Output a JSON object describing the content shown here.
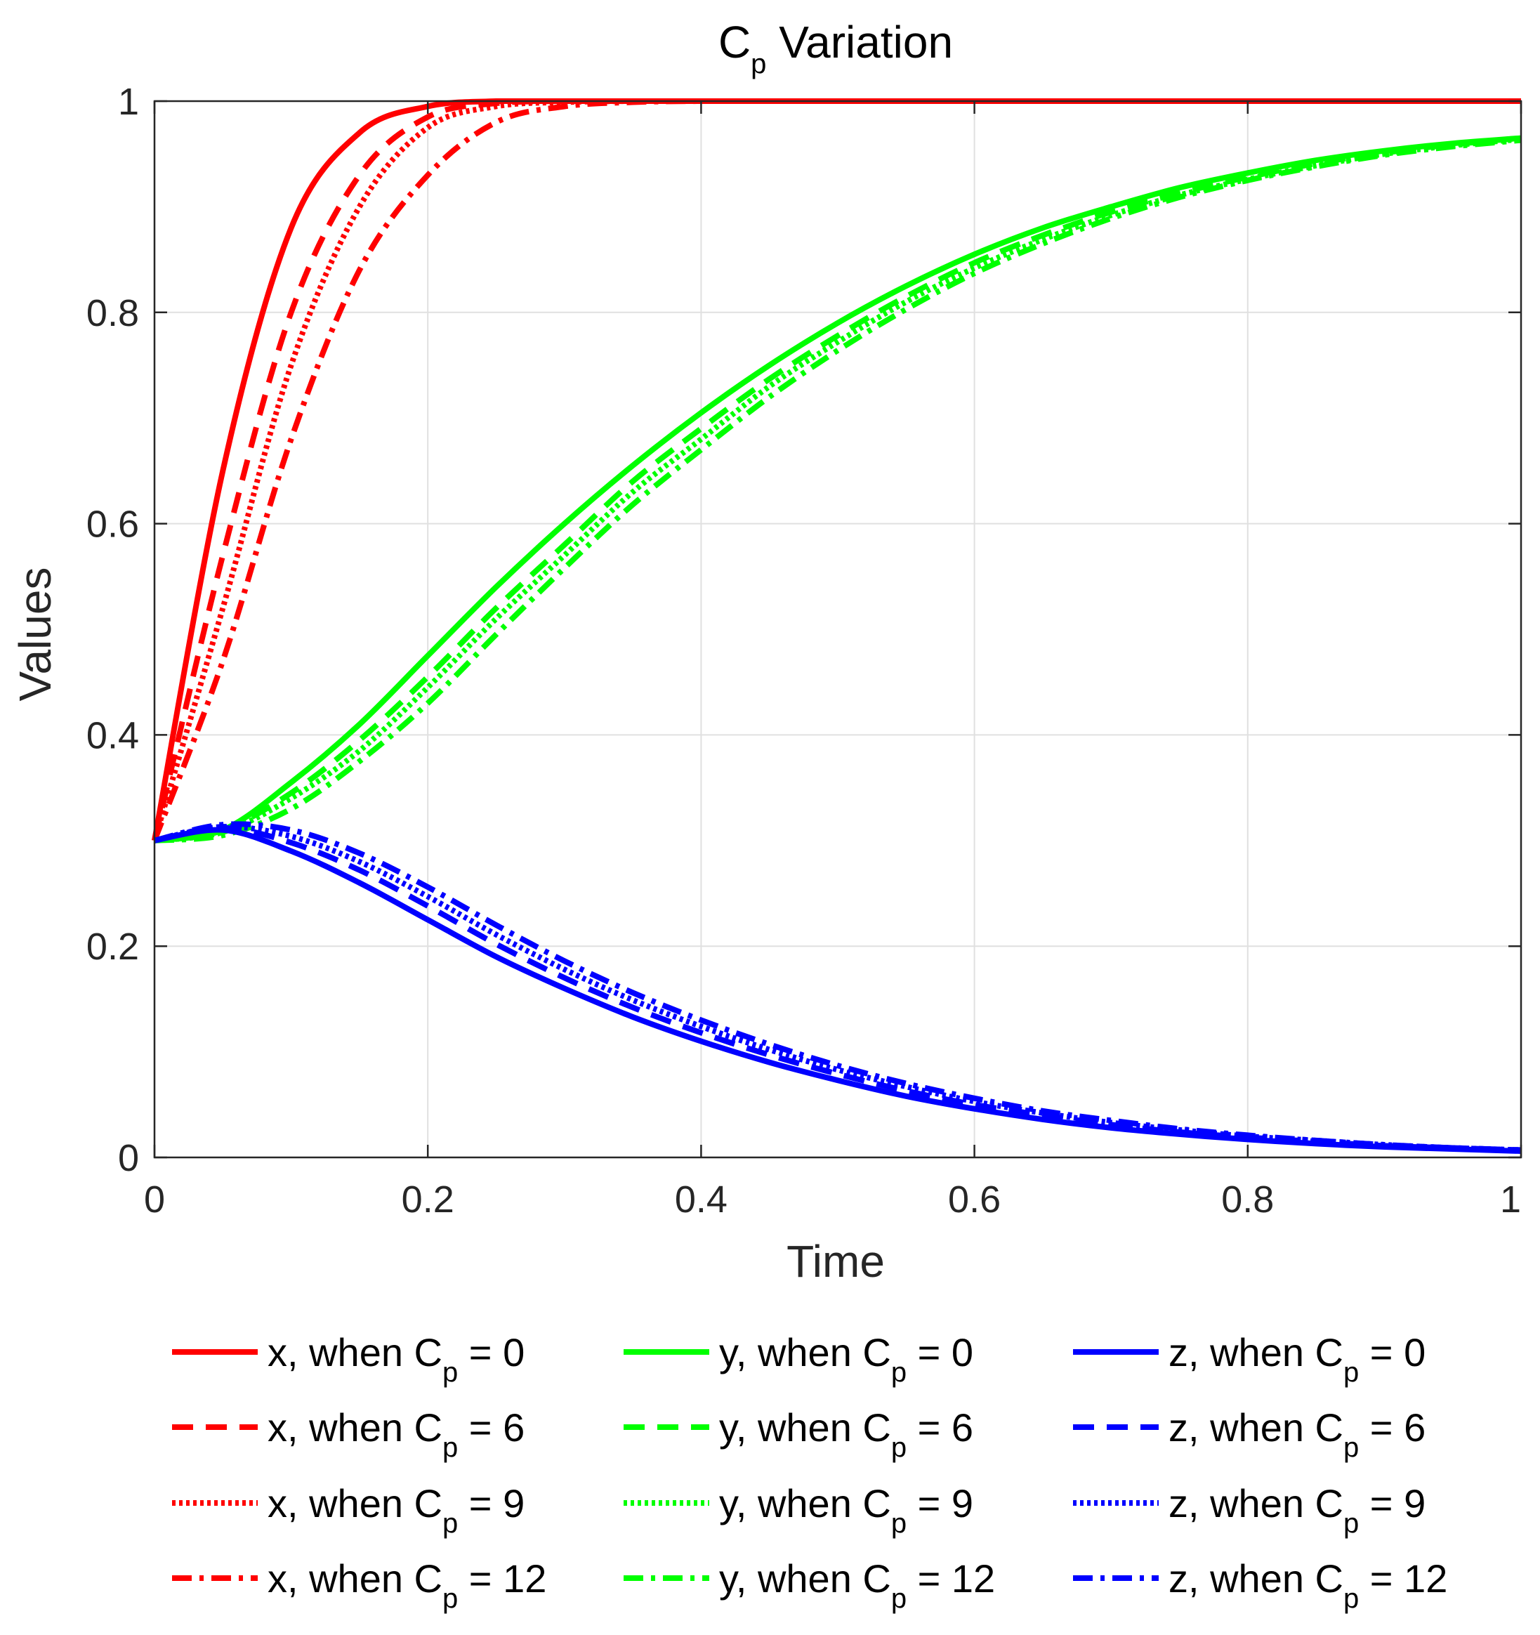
{
  "chart_data": {
    "type": "line",
    "title": "C",
    "title_sub": "p",
    "title_rest": " Variation",
    "xlabel": "Time",
    "ylabel": "Values",
    "xlim": [
      0,
      1
    ],
    "ylim": [
      0,
      1
    ],
    "xticks": [
      0,
      0.2,
      0.4,
      0.6,
      0.8,
      1
    ],
    "yticks": [
      0,
      0.2,
      0.4,
      0.6,
      0.8,
      1
    ],
    "xtick_labels": [
      "0",
      "0.2",
      "0.4",
      "0.6",
      "0.8",
      "1"
    ],
    "ytick_labels": [
      "0",
      "0.2",
      "0.4",
      "0.6",
      "0.8",
      "1"
    ],
    "grid": true,
    "legend_position": "bottom",
    "colors": {
      "x": "#ff0000",
      "y": "#00ff00",
      "z": "#0000ff",
      "grid": "#e0e0e0",
      "axis": "#262626"
    },
    "x": [
      0,
      0.05,
      0.1,
      0.15,
      0.2,
      0.25,
      0.3,
      0.35,
      0.4,
      0.45,
      0.5,
      0.55,
      0.6,
      0.65,
      0.7,
      0.75,
      0.8,
      0.85,
      0.9,
      0.95,
      1.0
    ],
    "series": [
      {
        "name": "x, when C",
        "sub": "p",
        "cp": " = 0",
        "var": "x",
        "dash": "solid",
        "values": [
          0.3,
          0.65,
          0.88,
          0.97,
          0.995,
          1,
          1,
          1,
          1,
          1,
          1,
          1,
          1,
          1,
          1,
          1,
          1,
          1,
          1,
          1,
          1
        ]
      },
      {
        "name": "x, when C",
        "sub": "p",
        "cp": " = 6",
        "var": "x",
        "dash": "dashed",
        "values": [
          0.3,
          0.57,
          0.8,
          0.93,
          0.985,
          0.998,
          1,
          1,
          1,
          1,
          1,
          1,
          1,
          1,
          1,
          1,
          1,
          1,
          1,
          1,
          1
        ]
      },
      {
        "name": "x, when C",
        "sub": "p",
        "cp": " = 9",
        "var": "x",
        "dash": "dotted",
        "values": [
          0.3,
          0.52,
          0.75,
          0.9,
          0.975,
          0.995,
          0.999,
          1,
          1,
          1,
          1,
          1,
          1,
          1,
          1,
          1,
          1,
          1,
          1,
          1,
          1
        ]
      },
      {
        "name": "x, when C",
        "sub": "p",
        "cp": " = 12",
        "var": "x",
        "dash": "dashdot",
        "values": [
          0.3,
          0.47,
          0.68,
          0.84,
          0.93,
          0.98,
          0.995,
          0.999,
          1,
          1,
          1,
          1,
          1,
          1,
          1,
          1,
          1,
          1,
          1,
          1,
          1
        ]
      },
      {
        "name": "y, when C",
        "sub": "p",
        "cp": " = 0",
        "var": "y",
        "dash": "solid",
        "values": [
          0.3,
          0.31,
          0.355,
          0.41,
          0.475,
          0.54,
          0.6,
          0.655,
          0.705,
          0.75,
          0.79,
          0.825,
          0.855,
          0.88,
          0.9,
          0.918,
          0.932,
          0.944,
          0.953,
          0.96,
          0.965
        ]
      },
      {
        "name": "y, when C",
        "sub": "p",
        "cp": " = 6",
        "var": "y",
        "dash": "dashed",
        "values": [
          0.3,
          0.31,
          0.345,
          0.395,
          0.455,
          0.52,
          0.58,
          0.64,
          0.69,
          0.737,
          0.778,
          0.815,
          0.847,
          0.873,
          0.895,
          0.913,
          0.928,
          0.941,
          0.951,
          0.959,
          0.965
        ]
      },
      {
        "name": "y, when C",
        "sub": "p",
        "cp": " = 9",
        "var": "y",
        "dash": "dotted",
        "values": [
          0.3,
          0.308,
          0.34,
          0.385,
          0.445,
          0.51,
          0.57,
          0.63,
          0.68,
          0.73,
          0.772,
          0.81,
          0.842,
          0.869,
          0.892,
          0.911,
          0.926,
          0.939,
          0.95,
          0.958,
          0.964
        ]
      },
      {
        "name": "y, when C",
        "sub": "p",
        "cp": " = 12",
        "var": "y",
        "dash": "dashdot",
        "values": [
          0.3,
          0.305,
          0.33,
          0.375,
          0.43,
          0.495,
          0.558,
          0.618,
          0.67,
          0.72,
          0.764,
          0.803,
          0.837,
          0.865,
          0.889,
          0.909,
          0.925,
          0.938,
          0.949,
          0.957,
          0.963
        ]
      },
      {
        "name": "z, when C",
        "sub": "p",
        "cp": " = 0",
        "var": "z",
        "dash": "solid",
        "values": [
          0.3,
          0.31,
          0.29,
          0.26,
          0.225,
          0.19,
          0.16,
          0.133,
          0.11,
          0.09,
          0.073,
          0.058,
          0.046,
          0.036,
          0.028,
          0.022,
          0.017,
          0.013,
          0.01,
          0.008,
          0.006
        ]
      },
      {
        "name": "z, when C",
        "sub": "p",
        "cp": " = 6",
        "var": "z",
        "dash": "dashed",
        "values": [
          0.3,
          0.312,
          0.298,
          0.272,
          0.238,
          0.202,
          0.17,
          0.142,
          0.118,
          0.097,
          0.079,
          0.063,
          0.05,
          0.04,
          0.031,
          0.024,
          0.019,
          0.015,
          0.011,
          0.009,
          0.007
        ]
      },
      {
        "name": "z, when C",
        "sub": "p",
        "cp": " = 9",
        "var": "z",
        "dash": "dotted",
        "values": [
          0.3,
          0.313,
          0.304,
          0.28,
          0.247,
          0.211,
          0.178,
          0.149,
          0.124,
          0.102,
          0.083,
          0.067,
          0.053,
          0.042,
          0.033,
          0.026,
          0.02,
          0.016,
          0.012,
          0.009,
          0.007
        ]
      },
      {
        "name": "z, when C",
        "sub": "p",
        "cp": " = 12",
        "var": "z",
        "dash": "dashdot",
        "values": [
          0.3,
          0.315,
          0.31,
          0.288,
          0.256,
          0.22,
          0.186,
          0.156,
          0.13,
          0.107,
          0.087,
          0.07,
          0.056,
          0.044,
          0.035,
          0.027,
          0.021,
          0.016,
          0.012,
          0.009,
          0.007
        ]
      }
    ]
  }
}
